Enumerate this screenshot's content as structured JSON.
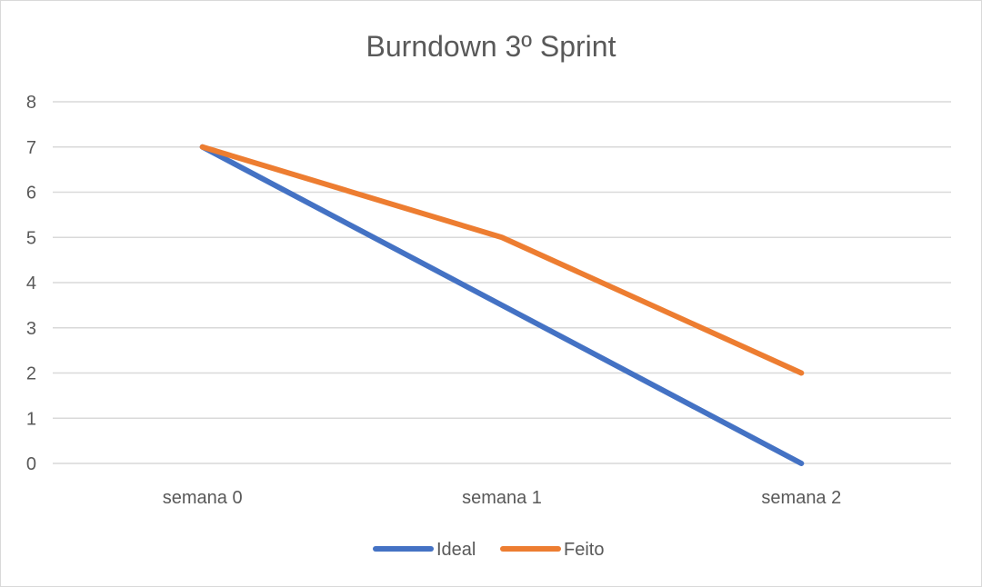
{
  "chart_data": {
    "type": "line",
    "title": "Burndown 3º Sprint",
    "xlabel": "",
    "ylabel": "",
    "categories": [
      "semana 0",
      "semana 1",
      "semana 2"
    ],
    "ylim": [
      0,
      8
    ],
    "yticks": [
      "0",
      "1",
      "2",
      "3",
      "4",
      "5",
      "6",
      "7",
      "8"
    ],
    "grid": true,
    "legend": "bottom",
    "series": [
      {
        "name": "Ideal",
        "values": [
          7,
          3.5,
          0
        ],
        "color": "#4472c4"
      },
      {
        "name": "Feito",
        "values": [
          7,
          5,
          2
        ],
        "color": "#ed7d31"
      }
    ]
  }
}
